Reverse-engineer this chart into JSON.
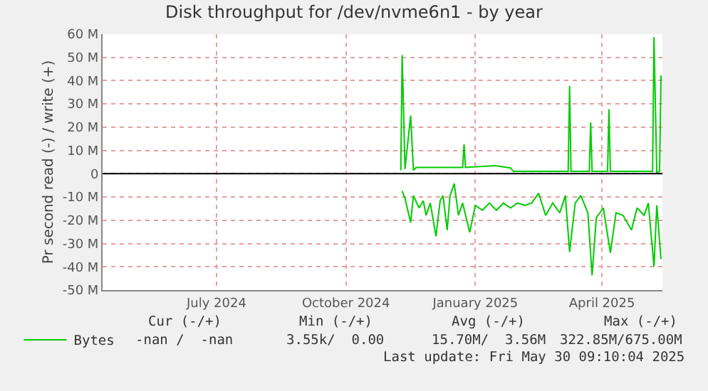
{
  "chart_data": {
    "type": "line",
    "title": "Disk throughput for /dev/nvme6n1 - by year",
    "ylabel": "Pr second read (-) / write (+)",
    "xlim": [
      "2024-04-11",
      "2025-05-14"
    ],
    "xticks": [
      {
        "value": "2024-07-01",
        "label": "July 2024"
      },
      {
        "value": "2024-10-01",
        "label": "October 2024"
      },
      {
        "value": "2025-01-01",
        "label": "January 2025"
      },
      {
        "value": "2025-04-01",
        "label": "April 2025"
      }
    ],
    "ylim": [
      -50,
      60
    ],
    "yticks": [
      {
        "value": -50,
        "label": "-50 M"
      },
      {
        "value": -40,
        "label": "-40 M"
      },
      {
        "value": -30,
        "label": "-30 M"
      },
      {
        "value": -20,
        "label": "-20 M"
      },
      {
        "value": -10,
        "label": "-10 M"
      },
      0,
      {
        "value": 10,
        "label": "10 M"
      },
      {
        "value": 20,
        "label": "20 M"
      },
      {
        "value": 30,
        "label": "30 M"
      },
      {
        "value": 40,
        "label": "40 M"
      },
      {
        "value": 50,
        "label": "50 M"
      },
      {
        "value": 60,
        "label": "60 M"
      }
    ],
    "grid": true,
    "legend": "bottom left",
    "marker": "none",
    "line_style": "solid",
    "series": [
      {
        "name": "Bytes",
        "color": "#00cc00",
        "x": [
          "2024-11-09",
          "2024-11-10",
          "2024-11-12",
          "2024-11-16",
          "2024-11-18",
          "2024-11-20",
          "2024-12-10",
          "2024-12-23",
          "2024-12-24",
          "2024-12-25",
          "2025-01-15",
          "2025-01-26",
          "2025-01-28",
          "2025-03-08",
          "2025-03-09",
          "2025-03-10",
          "2025-03-23",
          "2025-03-24",
          "2025-03-25",
          "2025-04-05",
          "2025-04-06",
          "2025-04-07",
          "2025-05-07",
          "2025-05-08",
          "2025-05-10",
          "2025-05-12",
          "2025-05-13"
        ],
        "values": [
          1.5,
          51,
          2,
          25,
          1.5,
          2.7,
          2.7,
          2.7,
          12.6,
          2.7,
          3.5,
          2.5,
          1,
          1,
          37.7,
          1,
          1,
          22,
          1,
          1,
          27.7,
          1,
          1,
          58.7,
          0.5,
          1,
          42.3
        ]
      },
      {
        "color": "#00cc00",
        "x": [
          "2024-11-10",
          "2024-11-12",
          "2024-11-16",
          "2024-11-18",
          "2024-11-22",
          "2024-11-25",
          "2024-11-27",
          "2024-11-30",
          "2024-12-04",
          "2024-12-07",
          "2024-12-09",
          "2024-12-12",
          "2024-12-14",
          "2024-12-17",
          "2024-12-20",
          "2024-12-23",
          "2024-12-28",
          "2025-01-01",
          "2025-01-06",
          "2025-01-11",
          "2025-01-16",
          "2025-01-21",
          "2025-01-26",
          "2025-01-31",
          "2025-02-05",
          "2025-02-10",
          "2025-02-15",
          "2025-02-20",
          "2025-02-25",
          "2025-03-02",
          "2025-03-06",
          "2025-03-09",
          "2025-03-13",
          "2025-03-17",
          "2025-03-22",
          "2025-03-25",
          "2025-03-28",
          "2025-04-02",
          "2025-04-07",
          "2025-04-11",
          "2025-04-16",
          "2025-04-22",
          "2025-04-26",
          "2025-05-01",
          "2025-05-04",
          "2025-05-08",
          "2025-05-10",
          "2025-05-13"
        ],
        "values": [
          -7.4,
          -10.6,
          -21,
          -9.4,
          -14.7,
          -11.6,
          -17.9,
          -12.6,
          -26.9,
          -11.6,
          -9.4,
          -24.2,
          -9.4,
          -4.2,
          -17.9,
          -12.6,
          -25.2,
          -13.6,
          -15.7,
          -12.6,
          -15.7,
          -12.6,
          -14.7,
          -12.6,
          -13.6,
          -12.6,
          -8.4,
          -17.9,
          -12.6,
          -16.8,
          -9.4,
          -33.6,
          -12.6,
          -9.4,
          -16.8,
          -43.6,
          -18.9,
          -14.7,
          -34,
          -16.8,
          -17.9,
          -24.2,
          -14.7,
          -17.9,
          -12.6,
          -39.9,
          -13.6,
          -36.7
        ]
      }
    ],
    "ref_lines": [
      {
        "axis": "y",
        "value": 0,
        "color": "#000000"
      }
    ],
    "annotations": [
      "Cur (-/+)",
      "Min (-/+)",
      "Avg (-/+)",
      "Max (-/+)",
      "-nan /  -nan",
      "3.55k/  0.00",
      "15.70M/  3.56M",
      "322.85M/675.00M",
      "Last update: Fri May 30 09:10:04 2025"
    ]
  }
}
